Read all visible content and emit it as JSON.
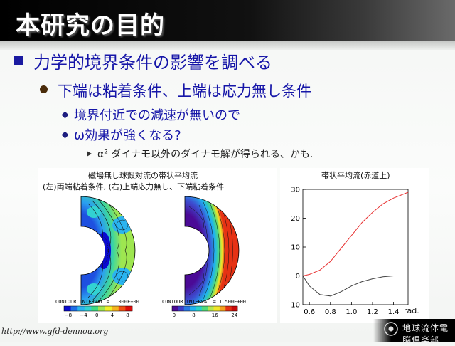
{
  "slide": {
    "title": "本研究の目的",
    "bullets": {
      "level1": "力学的境界条件の影響を調べる",
      "level2": "下端は粘着条件、上端は応力無し条件",
      "level3": [
        "境界付近での減速が無いので",
        "ω効果が強くなる?"
      ],
      "level4_prefix": "α",
      "level4_sup": "2",
      "level4_rest": " ダイナモ以外のダイナモ解が得られる、かも."
    }
  },
  "left_figure": {
    "caption_line1": "磁場無し球殻対流の帯状平均流",
    "caption_line2": "(左)両端粘着条件, (右)上端応力無し、下端粘着条件",
    "panel_a": {
      "contour_interval": "CONTOUR INTERVAL = 1.000E+00",
      "colorbar_ticks": [
        "−8",
        "−4",
        "0",
        "4",
        "8"
      ],
      "colors": [
        "#0a0ad0",
        "#1e6ee6",
        "#2ab4f0",
        "#32d2d2",
        "#3cdc82",
        "#a0e650",
        "#f0f028",
        "#f5b41e",
        "#f05014",
        "#dc0a0a"
      ]
    },
    "panel_b": {
      "contour_interval": "CONTOUR INTERVAL = 1.500E+00",
      "colorbar_ticks": [
        "0",
        "8",
        "16",
        "24"
      ],
      "colors": [
        "#4b0a96",
        "#3c3cc8",
        "#2878e6",
        "#1eb4f0",
        "#28d2c8",
        "#50dc78",
        "#b4e650",
        "#f0e628",
        "#f5a01e",
        "#e63214",
        "#c80a0a"
      ]
    }
  },
  "chart_data": {
    "type": "line",
    "title": "帯状平均流(赤道上)",
    "xlabel": "rad.",
    "ylabel": "",
    "xlim": [
      0.538,
      1.538
    ],
    "ylim": [
      -10,
      30
    ],
    "xticks": [
      "0.6",
      "0.8",
      "1.0",
      "1.2",
      "1.4"
    ],
    "yticks": [
      "30",
      "20",
      "10",
      "0",
      "-10"
    ],
    "series": [
      {
        "color": "#e83030",
        "x": [
          0.538,
          0.6,
          0.7,
          0.8,
          0.9,
          1.0,
          1.1,
          1.2,
          1.3,
          1.4,
          1.538
        ],
        "y": [
          0.0,
          0.5,
          2.0,
          5.0,
          9.5,
          14.0,
          18.5,
          22.0,
          25.0,
          27.0,
          29.0
        ]
      },
      {
        "color": "#404040",
        "x": [
          0.538,
          0.6,
          0.7,
          0.8,
          0.9,
          1.0,
          1.1,
          1.2,
          1.3,
          1.4,
          1.538
        ],
        "y": [
          0.0,
          -3.5,
          -6.5,
          -7.0,
          -5.5,
          -3.5,
          -2.0,
          -1.0,
          -0.3,
          0.0,
          0.0
        ]
      }
    ],
    "zero_line": true
  },
  "footer": {
    "url": "http://www.gfd-dennou.org",
    "logo_text": "地球流体電脳倶楽部"
  }
}
